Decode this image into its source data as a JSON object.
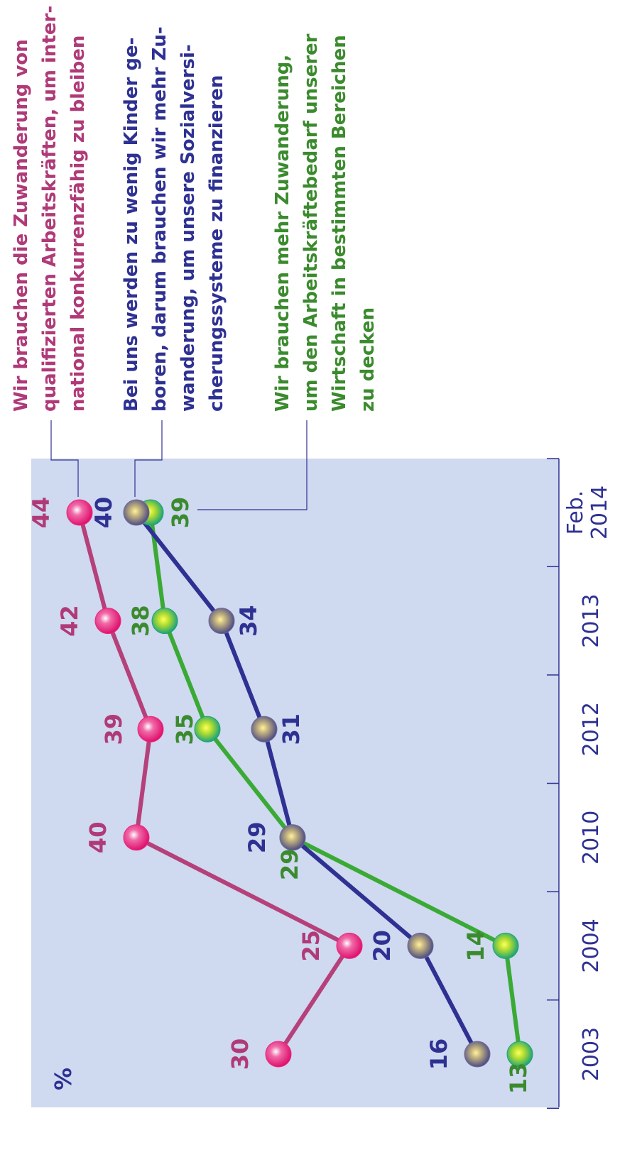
{
  "chart_data": {
    "type": "line",
    "unit_label": "%",
    "categories": [
      "2003",
      "2004",
      "2010",
      "2012",
      "2013",
      "Feb. 2014"
    ],
    "ylim": [
      10,
      47.5
    ],
    "series": [
      {
        "name": "Wir brauchen die Zuwanderung von\nqualifizierten Arbeitskräften, um inter-\nnational konkurrenzfähig zu bleiben",
        "color": "#b5407a",
        "marker_color": "#e8287e",
        "values": [
          30,
          25,
          40,
          39,
          42,
          44
        ]
      },
      {
        "name": "Bei uns werden zu wenig Kinder ge-\nboren, darum brauchen wir mehr Zu-\nwanderung, um unsere Sozialversi-\ncherungssysteme zu finanzieren",
        "color": "#2e3192",
        "marker_color": "#6a6aa0",
        "values": [
          16,
          20,
          29,
          31,
          34,
          40
        ]
      },
      {
        "name": "Wir brauchen mehr Zuwanderung,\num den Arbeitskräftebedarf unserer\nWirtschaft in bestimmten Bereichen\nzu decken",
        "color": "#3aaa35",
        "marker_color": "#19a37a",
        "values": [
          13,
          14,
          29,
          35,
          38,
          39
        ]
      }
    ]
  }
}
